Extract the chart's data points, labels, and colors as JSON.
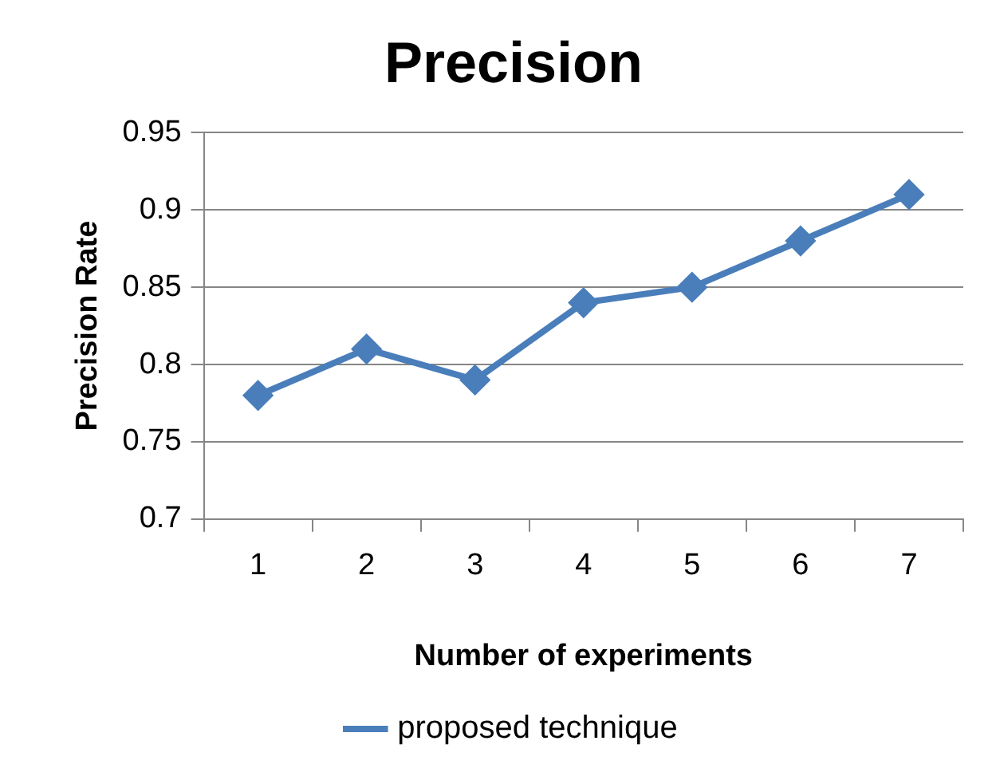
{
  "chart_data": {
    "type": "line",
    "title": "Precision",
    "xlabel": "Number of experiments",
    "ylabel": "Precision Rate",
    "categories": [
      "1",
      "2",
      "3",
      "4",
      "5",
      "6",
      "7"
    ],
    "series": [
      {
        "name": "proposed technique",
        "color": "#4a7ebb",
        "values": [
          0.78,
          0.81,
          0.79,
          0.84,
          0.85,
          0.88,
          0.91
        ]
      }
    ],
    "ylim": [
      0.7,
      0.95
    ],
    "yticks": [
      0.7,
      0.75,
      0.8,
      0.85,
      0.9,
      0.95
    ],
    "grid": "y",
    "legend": "bottom",
    "marker": "diamond",
    "line_style": "solid"
  }
}
